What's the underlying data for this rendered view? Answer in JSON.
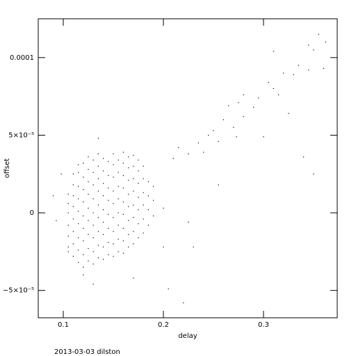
{
  "chart_data": {
    "type": "scatter",
    "x_label": "delay",
    "y_label": "offset",
    "footnote": "2013-03-03 dilston",
    "xlim": [
      0.075,
      0.3736
    ],
    "ylim": [
      -6.76e-05,
      0.000125
    ],
    "xticks": [
      0.1,
      0.2,
      0.3
    ],
    "yticks": [
      {
        "value": -5e-05,
        "label": "−5×10⁻⁵"
      },
      0,
      {
        "value": 5e-05,
        "label": "5×10⁻⁵"
      },
      0.0001
    ],
    "color": "#000000",
    "x": [
      0.105,
      0.105,
      0.105,
      0.105,
      0.105,
      0.105,
      0.105,
      0.11,
      0.11,
      0.11,
      0.11,
      0.11,
      0.11,
      0.11,
      0.11,
      0.115,
      0.115,
      0.115,
      0.115,
      0.115,
      0.115,
      0.115,
      0.115,
      0.115,
      0.12,
      0.12,
      0.12,
      0.12,
      0.12,
      0.12,
      0.12,
      0.12,
      0.12,
      0.125,
      0.125,
      0.125,
      0.125,
      0.125,
      0.125,
      0.125,
      0.125,
      0.125,
      0.13,
      0.13,
      0.13,
      0.13,
      0.13,
      0.13,
      0.13,
      0.13,
      0.13,
      0.135,
      0.135,
      0.135,
      0.135,
      0.135,
      0.135,
      0.135,
      0.135,
      0.135,
      0.14,
      0.14,
      0.14,
      0.14,
      0.14,
      0.14,
      0.14,
      0.14,
      0.14,
      0.145,
      0.145,
      0.145,
      0.145,
      0.145,
      0.145,
      0.145,
      0.145,
      0.15,
      0.15,
      0.15,
      0.15,
      0.15,
      0.15,
      0.15,
      0.15,
      0.15,
      0.155,
      0.155,
      0.155,
      0.155,
      0.155,
      0.155,
      0.155,
      0.155,
      0.16,
      0.16,
      0.16,
      0.16,
      0.16,
      0.16,
      0.16,
      0.16,
      0.16,
      0.165,
      0.165,
      0.165,
      0.165,
      0.165,
      0.165,
      0.165,
      0.165,
      0.17,
      0.17,
      0.17,
      0.17,
      0.17,
      0.17,
      0.17,
      0.17,
      0.175,
      0.175,
      0.175,
      0.175,
      0.175,
      0.175,
      0.175,
      0.18,
      0.18,
      0.18,
      0.18,
      0.18,
      0.18,
      0.185,
      0.185,
      0.185,
      0.185,
      0.19,
      0.19,
      0.19,
      0.09,
      0.093,
      0.098,
      0.12,
      0.13,
      0.135,
      0.17,
      0.2,
      0.205,
      0.22,
      0.21,
      0.2,
      0.23,
      0.255,
      0.215,
      0.225,
      0.235,
      0.245,
      0.25,
      0.24,
      0.255,
      0.26,
      0.265,
      0.27,
      0.275,
      0.28,
      0.29,
      0.295,
      0.3,
      0.305,
      0.31,
      0.315,
      0.32,
      0.325,
      0.33,
      0.335,
      0.34,
      0.345,
      0.35,
      0.355,
      0.36,
      0.362,
      0.35,
      0.31,
      0.345,
      0.28,
      0.273,
      0.225
    ],
    "values": [
      -2.2e-05,
      -1.5e-05,
      -8e-06,
      0,
      6e-06,
      1.2e-05,
      -2.5e-05,
      -2.8e-05,
      -2e-05,
      -1.2e-05,
      -4e-06,
      4e-06,
      1.1e-05,
      1.8e-05,
      2.5e-05,
      -3.2e-05,
      -2.4e-05,
      -1.6e-05,
      -7e-06,
      1e-06,
      9e-06,
      1.7e-05,
      2.6e-05,
      3.1e-05,
      -3.5e-05,
      -2.7e-05,
      -1.8e-05,
      -1e-05,
      -2e-06,
      7e-06,
      1.5e-05,
      2.3e-05,
      3.2e-05,
      -3.1e-05,
      -2.3e-05,
      -1.4e-05,
      -5e-06,
      3e-06,
      1.2e-05,
      2e-05,
      2.8e-05,
      3.6e-05,
      -3.3e-05,
      -2.5e-05,
      -1.6e-05,
      -8e-06,
      0,
      9e-06,
      1.8e-05,
      2.6e-05,
      3.4e-05,
      -2.9e-05,
      -2.1e-05,
      -1.2e-05,
      -3e-06,
      5e-06,
      1.4e-05,
      2.2e-05,
      3e-05,
      3.8e-05,
      -3e-05,
      -2.2e-05,
      -1.4e-05,
      -6e-06,
      2e-06,
      1.1e-05,
      1.9e-05,
      2.7e-05,
      3.5e-05,
      -2.7e-05,
      -1.9e-05,
      -1e-05,
      -1e-06,
      8e-06,
      1.6e-05,
      2.4e-05,
      3.3e-05,
      -2.8e-05,
      -2e-05,
      -1.2e-05,
      -3e-06,
      6e-06,
      1.4e-05,
      2.3e-05,
      3.1e-05,
      3.8e-05,
      -2.5e-05,
      -1.7e-05,
      -8e-06,
      0,
      9e-06,
      1.7e-05,
      2.6e-05,
      3.4e-05,
      -2.6e-05,
      -1.8e-05,
      -1e-05,
      -1e-06,
      7e-06,
      1.6e-05,
      2.4e-05,
      3.2e-05,
      3.9e-05,
      -2.2e-05,
      -1.4e-05,
      -5e-06,
      4e-06,
      1.2e-05,
      2.1e-05,
      2.9e-05,
      3.6e-05,
      -2e-05,
      -1.2e-05,
      -3e-06,
      5e-06,
      1.4e-05,
      2.2e-05,
      3e-05,
      3.7e-05,
      -1.6e-05,
      -7e-06,
      2e-06,
      1e-05,
      1.9e-05,
      2.7e-05,
      3.4e-05,
      -1.3e-05,
      -4e-06,
      5e-06,
      1.3e-05,
      2.2e-05,
      3e-05,
      -8e-06,
      2e-06,
      1.1e-05,
      2e-05,
      -2e-06,
      8e-06,
      1.7e-05,
      1.1e-05,
      -5e-06,
      2.5e-05,
      -4e-05,
      -4.6e-05,
      4.8e-05,
      -4.2e-05,
      -2.2e-05,
      -4.9e-05,
      -5.8e-05,
      3.5e-05,
      3e-06,
      -2.2e-05,
      1.8e-05,
      4.2e-05,
      3.8e-05,
      4.5e-05,
      5e-05,
      5.3e-05,
      3.9e-05,
      4.6e-05,
      6e-05,
      6.9e-05,
      5.5e-05,
      7.1e-05,
      7.6e-05,
      6.8e-05,
      7.4e-05,
      4.9e-05,
      8.4e-05,
      8e-05,
      7.6e-05,
      9e-05,
      6.4e-05,
      8.9e-05,
      9.5e-05,
      3.6e-05,
      9.2e-05,
      0.000105,
      0.000115,
      9.3e-05,
      0.00011,
      2.5e-05,
      0.000104,
      0.000108,
      6.2e-05,
      4.9e-05,
      -6e-06
    ]
  }
}
